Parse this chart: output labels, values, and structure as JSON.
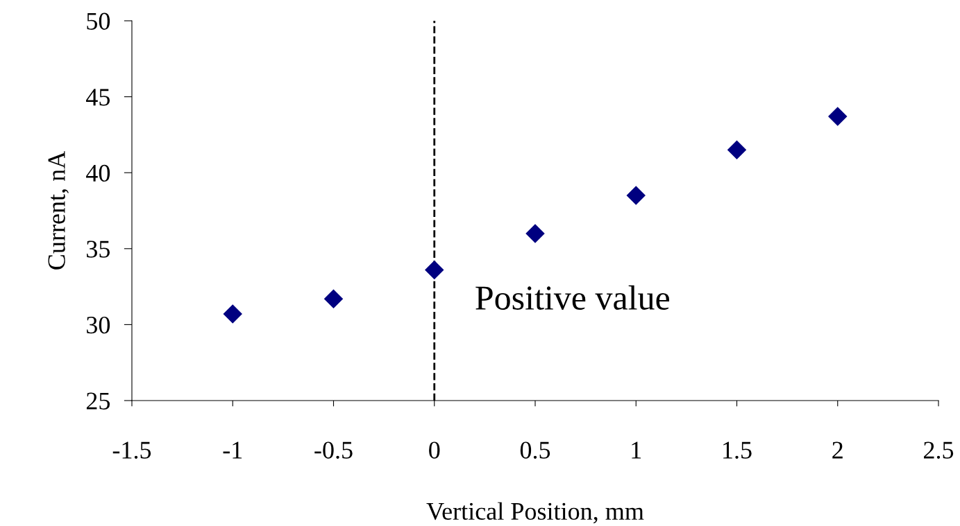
{
  "chart_data": {
    "type": "scatter",
    "xlabel": "Vertical Position, mm",
    "ylabel": "Current, nA",
    "x": [
      -1,
      -0.5,
      0,
      0.5,
      1,
      1.5,
      2
    ],
    "series": [
      {
        "color": "#000080",
        "values": [
          30.7,
          31.7,
          33.6,
          36.0,
          38.5,
          41.5,
          43.7
        ]
      }
    ],
    "marker": "diamond",
    "xlim": [
      -1.5,
      2.5
    ],
    "xticks": [
      -1.5,
      -1,
      -0.5,
      0,
      0.5,
      1,
      1.5,
      2,
      2.5
    ],
    "ylim": [
      25,
      50
    ],
    "yticks": [
      25,
      30,
      35,
      40,
      45,
      50
    ],
    "ref_lines": [
      {
        "axis": "x",
        "value": 0,
        "color": "#000000",
        "line_style": "dashed"
      }
    ],
    "annotations": [
      "Positive value"
    ],
    "grid": false,
    "legend": false
  }
}
